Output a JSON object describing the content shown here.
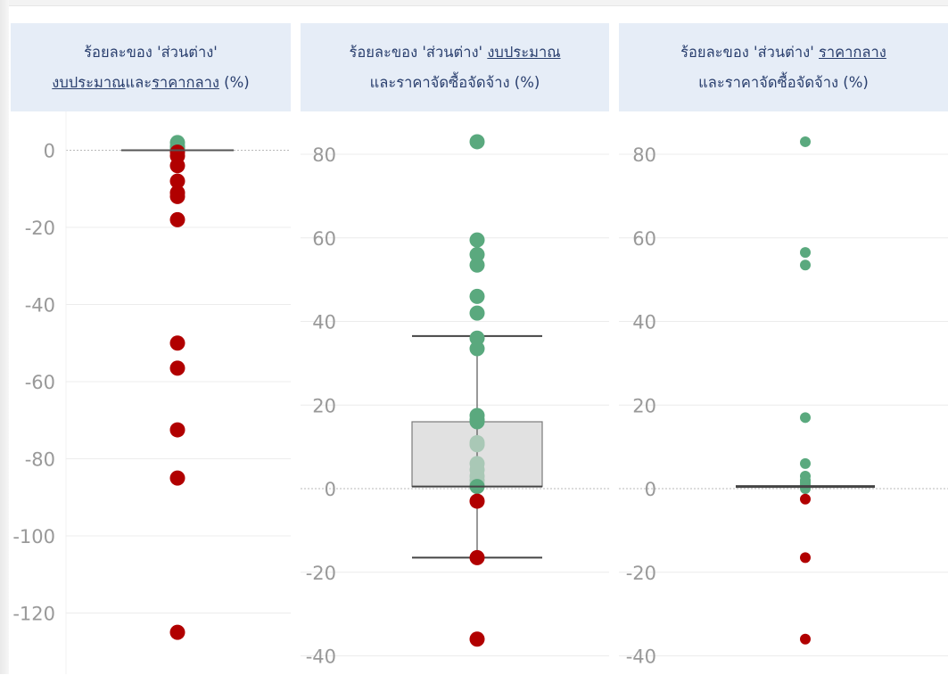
{
  "colors": {
    "positive": "#5aa97e",
    "positive_light": "#a9c8b6",
    "negative": "#b10000",
    "box_fill": "#e1e1e1",
    "median": "#555555",
    "header_bg": "#e6edf7",
    "header_text": "#2a3f6e",
    "tick": "#999999"
  },
  "panels": [
    {
      "header_line1": [
        {
          "text": "ร้อยละของ 'ส่วนต่าง'",
          "u": false
        }
      ],
      "header_line2": [
        {
          "text": "งบประมาณ",
          "u": true
        },
        {
          "text": "และ",
          "u": false
        },
        {
          "text": "ราคากลาง",
          "u": true
        },
        {
          "text": " (%)",
          "u": false
        }
      ]
    },
    {
      "header_line1": [
        {
          "text": "ร้อยละของ 'ส่วนต่าง' ",
          "u": false
        },
        {
          "text": "งบประมาณ",
          "u": true
        }
      ],
      "header_line2": [
        {
          "text": "และราคาจัดซื้อจัดจ้าง (%)",
          "u": false
        }
      ]
    },
    {
      "header_line1": [
        {
          "text": "ร้อยละของ 'ส่วนต่าง' ",
          "u": false
        },
        {
          "text": "ราคากลาง",
          "u": true
        }
      ],
      "header_line2": [
        {
          "text": "และราคาจัดซื้อจัดจ้าง (%)",
          "u": false
        }
      ]
    }
  ],
  "chart_data": [
    {
      "type": "scatter",
      "subtype": "box-strip",
      "ylim": [
        -125,
        2
      ],
      "yticks": [
        0,
        -20,
        -40,
        -60,
        -80,
        -100,
        -120
      ],
      "zero_line": true,
      "box": {
        "q1": 0,
        "median": 0,
        "q3": 0,
        "whisker_low": 0,
        "whisker_high": 0
      },
      "values": [
        2,
        1,
        0.5,
        -0.5,
        -1.5,
        -4,
        -8,
        -11,
        -12,
        -18,
        -50,
        -56.5,
        -72.5,
        -85,
        -125
      ]
    },
    {
      "type": "scatter",
      "subtype": "box-strip",
      "ylim": [
        -40,
        85
      ],
      "yticks": [
        80,
        60,
        40,
        20,
        0,
        -20,
        -40
      ],
      "zero_line": true,
      "box": {
        "q1": 0.5,
        "median": 0.5,
        "q3": 16,
        "whisker_low": -16.5,
        "whisker_high": 36.5
      },
      "values": [
        83,
        59.5,
        56,
        53.5,
        46,
        42,
        36,
        33.5,
        17.5,
        16.5,
        16,
        11,
        10.5,
        6,
        4.5,
        3,
        2,
        1,
        0.5,
        -3,
        -16.5,
        -36
      ]
    },
    {
      "type": "scatter",
      "subtype": "box-strip",
      "ylim": [
        -40,
        85
      ],
      "yticks": [
        80,
        60,
        40,
        20,
        0,
        -20,
        -40
      ],
      "zero_line": true,
      "box": {
        "q1": 0.5,
        "median": 0.5,
        "q3": 0.5,
        "whisker_low": 0.5,
        "whisker_high": 0.5
      },
      "values": [
        83,
        56.5,
        53.5,
        17,
        6,
        3,
        2,
        1.5,
        1,
        0.5,
        0,
        -2.5,
        -16.5,
        -36
      ]
    }
  ]
}
